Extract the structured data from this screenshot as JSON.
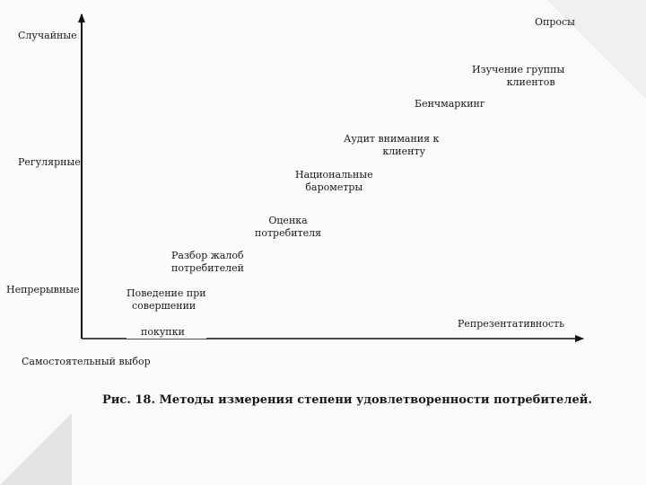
{
  "axes": {
    "y_labels": {
      "top": "Случайные",
      "middle": "Регулярные",
      "bottom": "Непрерывные"
    },
    "x_labels": {
      "right": "Репрезентативность",
      "left": "Самостоятельный выбор"
    }
  },
  "methods": {
    "surveys": "Опросы",
    "client_group_study": [
      "Изучение группы",
      "клиентов"
    ],
    "benchmarking": "Бенчмаркинг",
    "attention_audit": [
      "Аудит внимания к",
      "клиенту"
    ],
    "national_barometers": [
      "Национальные",
      "барометры"
    ],
    "consumer_assessment": [
      "Оценка",
      "потребителя"
    ],
    "complaint_analysis": [
      "Разбор жалоб",
      "потребителей"
    ],
    "purchase_behavior": [
      "Поведение при",
      "совершении",
      "покупки"
    ]
  },
  "caption": "Рис. 18. Методы измерения степени удовлетворенности потребителей."
}
